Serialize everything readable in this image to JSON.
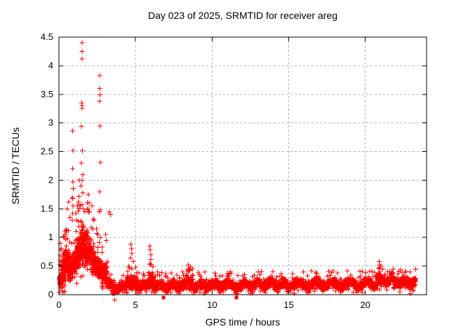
{
  "chart_data": {
    "type": "scatter",
    "title": "Day 023 of 2025, SRMTID for receiver areg",
    "xlabel": "GPS time / hours",
    "ylabel": "SRMTID / TECUs",
    "xlim": [
      0,
      24
    ],
    "ylim": [
      0,
      4.5
    ],
    "xticks": [
      0,
      5,
      10,
      15,
      20
    ],
    "xtick_labels": [
      "0",
      "5",
      "10",
      "15",
      "20"
    ],
    "yticks": [
      0,
      0.5,
      1,
      1.5,
      2,
      2.5,
      3,
      3.5,
      4,
      4.5
    ],
    "ytick_labels": [
      "0",
      "0.5",
      "1",
      "1.5",
      "2",
      "2.5",
      "3",
      "3.5",
      "4",
      "4.5"
    ],
    "grid": true,
    "legend": "none",
    "marker": {
      "shape": "plus",
      "size": 7,
      "color": "#ff0000",
      "square_size": 5
    },
    "colors": {
      "background": "#ffffff",
      "axis": "#000000",
      "grid": "#b3b3b3",
      "text": "#000000"
    },
    "seed": 20250123,
    "peak_points": [
      [
        0.08,
        0.52
      ],
      [
        0.1,
        0.6
      ],
      [
        0.09,
        0.68
      ],
      [
        0.11,
        0.78
      ],
      [
        0.1,
        0.9
      ],
      [
        0.3,
        1.02
      ],
      [
        0.38,
        1.1
      ],
      [
        0.45,
        1.05
      ],
      [
        0.55,
        0.98
      ],
      [
        0.62,
        1.12
      ],
      [
        0.55,
        1.5
      ],
      [
        0.65,
        1.62
      ],
      [
        0.7,
        1.35
      ],
      [
        0.87,
        1.7
      ],
      [
        0.88,
        1.3
      ],
      [
        0.9,
        1.42
      ],
      [
        0.92,
        1.55
      ],
      [
        0.9,
        1.68
      ],
      [
        0.93,
        1.85
      ],
      [
        0.91,
        1.97
      ],
      [
        0.89,
        2.2
      ],
      [
        0.92,
        2.52
      ],
      [
        0.9,
        2.86
      ],
      [
        1.1,
        1.42
      ],
      [
        1.15,
        1.3
      ],
      [
        1.22,
        1.55
      ],
      [
        1.28,
        1.62
      ],
      [
        1.3,
        1.72
      ],
      [
        1.33,
        2.0
      ],
      [
        1.4,
        1.55
      ],
      [
        1.6,
        1.5
      ],
      [
        1.7,
        1.45
      ],
      [
        1.5,
        4.4
      ],
      [
        1.5,
        4.25
      ],
      [
        1.51,
        4.12
      ],
      [
        1.48,
        3.35
      ],
      [
        1.52,
        3.3
      ],
      [
        1.5,
        3.26
      ],
      [
        1.46,
        2.94
      ],
      [
        1.53,
        2.52
      ],
      [
        1.47,
        2.3
      ],
      [
        1.55,
        2.1
      ],
      [
        1.5,
        2.0
      ],
      [
        1.44,
        1.9
      ],
      [
        1.56,
        1.78
      ],
      [
        1.93,
        1.75
      ],
      [
        1.96,
        1.6
      ],
      [
        1.9,
        1.5
      ],
      [
        2.0,
        1.45
      ],
      [
        2.15,
        1.55
      ],
      [
        2.3,
        1.3
      ],
      [
        2.45,
        1.15
      ],
      [
        2.55,
        1.05
      ],
      [
        2.65,
        3.83
      ],
      [
        2.66,
        3.6
      ],
      [
        2.67,
        3.49
      ],
      [
        2.66,
        3.38
      ],
      [
        2.68,
        2.95
      ],
      [
        2.7,
        2.31
      ],
      [
        2.7,
        1.48
      ],
      [
        2.66,
        1.8
      ],
      [
        2.64,
        1.45
      ],
      [
        3.05,
        1.05
      ],
      [
        3.1,
        0.95
      ],
      [
        3.28,
        1.44
      ],
      [
        3.36,
        1.4
      ],
      [
        3.65,
        -0.09
      ],
      [
        4.7,
        0.88
      ],
      [
        4.73,
        0.8
      ],
      [
        4.76,
        0.72
      ],
      [
        4.68,
        0.64
      ],
      [
        4.85,
        0.58
      ],
      [
        5.93,
        0.85
      ],
      [
        5.96,
        0.78
      ],
      [
        5.99,
        0.7
      ],
      [
        6.01,
        0.62
      ],
      [
        5.95,
        0.54
      ],
      [
        8.45,
        0.52
      ],
      [
        8.5,
        0.46
      ],
      [
        8.55,
        0.42
      ],
      [
        8.6,
        0.48
      ],
      [
        20.9,
        0.58
      ],
      [
        20.93,
        0.52
      ],
      [
        20.88,
        0.46
      ],
      [
        20.95,
        0.4
      ]
    ],
    "square_points": [
      [
        6.83,
        -0.05
      ],
      [
        11.59,
        -0.05
      ]
    ],
    "band_segments": [
      {
        "t0": 0.02,
        "t1": 0.15,
        "n": 30,
        "c0": 0.2,
        "c1": 0.28,
        "s": 0.15,
        "max": 0.55
      },
      {
        "t0": 0.15,
        "t1": 0.45,
        "n": 120,
        "c0": 0.3,
        "c1": 0.6,
        "s": 0.3,
        "max": 1.12
      },
      {
        "t0": 0.45,
        "t1": 0.75,
        "n": 110,
        "c0": 0.6,
        "c1": 0.45,
        "s": 0.28,
        "max": 1.15
      },
      {
        "t0": 0.75,
        "t1": 1.05,
        "n": 70,
        "c0": 0.45,
        "c1": 0.55,
        "s": 0.25,
        "max": 1.25
      },
      {
        "t0": 1.05,
        "t1": 1.45,
        "n": 150,
        "c0": 0.6,
        "c1": 0.85,
        "s": 0.33,
        "max": 1.6
      },
      {
        "t0": 1.45,
        "t1": 1.9,
        "n": 160,
        "c0": 0.85,
        "c1": 0.8,
        "s": 0.35,
        "max": 1.7
      },
      {
        "t0": 1.9,
        "t1": 2.3,
        "n": 120,
        "c0": 0.8,
        "c1": 0.55,
        "s": 0.3,
        "max": 1.6
      },
      {
        "t0": 2.3,
        "t1": 3.15,
        "n": 210,
        "c0": 0.55,
        "c1": 0.3,
        "s": 0.22,
        "max": 1.1
      },
      {
        "t0": 3.15,
        "t1": 3.6,
        "n": 90,
        "c0": 0.25,
        "c1": 0.1,
        "s": 0.13,
        "max": 0.6
      },
      {
        "t0": 3.6,
        "t1": 3.95,
        "n": 80,
        "c0": 0.07,
        "c1": 0.1,
        "s": 0.06,
        "min": 0.0,
        "max": 0.3
      },
      {
        "t0": 3.95,
        "t1": 4.45,
        "n": 90,
        "c0": 0.14,
        "c1": 0.16,
        "s": 0.09,
        "max": 0.4
      },
      {
        "t0": 4.45,
        "t1": 5.1,
        "n": 130,
        "c0": 0.22,
        "c1": 0.2,
        "s": 0.13,
        "max": 0.55
      },
      {
        "t0": 5.1,
        "t1": 5.85,
        "n": 140,
        "c0": 0.16,
        "c1": 0.16,
        "s": 0.09,
        "max": 0.38
      },
      {
        "t0": 5.85,
        "t1": 6.2,
        "n": 80,
        "c0": 0.26,
        "c1": 0.22,
        "s": 0.15,
        "max": 0.6
      },
      {
        "t0": 6.2,
        "t1": 8.35,
        "n": 300,
        "c0": 0.16,
        "c1": 0.16,
        "s": 0.1,
        "max": 0.4,
        "wave": [
          0.03,
          0.8
        ]
      },
      {
        "t0": 8.35,
        "t1": 8.75,
        "n": 90,
        "c0": 0.22,
        "c1": 0.18,
        "s": 0.12,
        "max": 0.45
      },
      {
        "t0": 8.75,
        "t1": 11.55,
        "n": 400,
        "c0": 0.15,
        "c1": 0.17,
        "s": 0.1,
        "max": 0.4,
        "wave": [
          0.03,
          0.9
        ]
      },
      {
        "t0": 11.55,
        "t1": 14.5,
        "n": 420,
        "c0": 0.17,
        "c1": 0.18,
        "s": 0.1,
        "max": 0.42,
        "wave": [
          0.035,
          0.85
        ]
      },
      {
        "t0": 14.5,
        "t1": 20.75,
        "n": 850,
        "c0": 0.18,
        "c1": 0.19,
        "s": 0.1,
        "max": 0.42,
        "wave": [
          0.04,
          1.1
        ]
      },
      {
        "t0": 20.75,
        "t1": 21.1,
        "n": 70,
        "c0": 0.28,
        "c1": 0.25,
        "s": 0.13,
        "max": 0.6
      },
      {
        "t0": 21.1,
        "t1": 23.3,
        "n": 300,
        "c0": 0.26,
        "c1": 0.21,
        "s": 0.11,
        "max": 0.45,
        "wave": [
          0.035,
          0.8
        ]
      }
    ]
  }
}
